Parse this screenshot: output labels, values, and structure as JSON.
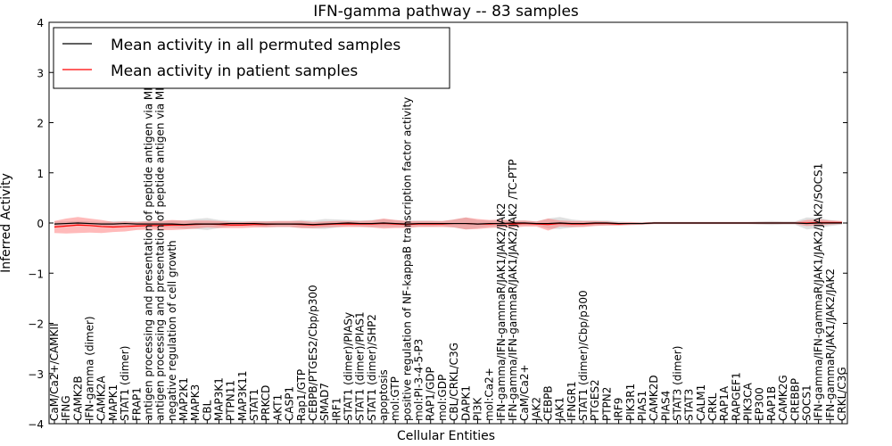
{
  "chart_data": {
    "type": "line",
    "title": "IFN-gamma pathway -- 83 samples",
    "xlabel": "Cellular Entities",
    "ylabel": "Inferred Activity",
    "ylim": [
      -4,
      4
    ],
    "yticks": [
      -4,
      -3,
      -2,
      -1,
      0,
      1,
      2,
      3,
      4
    ],
    "legend_position": "top-left",
    "categories": [
      "CaM/Ca2+/CAMKII",
      "IFNG",
      "CAMK2B",
      "IFN-gamma (dimer)",
      "CAMK2A",
      "MAPK1",
      "STAT1 (dimer)",
      "FRAP1",
      "antigen processing and presentation of peptide antigen via MHC class I",
      "antigen processing and presentation of peptide antigen via MHC class II",
      "negative regulation of cell growth",
      "MAP2K1",
      "MAPK3",
      "CBL",
      "MAP3K1",
      "PTPN11",
      "MAP3K11",
      "STAT1",
      "PRKCD",
      "AKT1",
      "CASP1",
      "Rap1/GTP",
      "CEBPB/PTGES2/Cbp/p300",
      "SMAD7",
      "IRF1",
      "STAT1 (dimer)/PIASy",
      "STAT1 (dimer)/PIAS1",
      "STAT1 (dimer)/SHP2",
      "apoptosis",
      "mol:GTP",
      "positive regulation of NF-kappaB transcription factor activity",
      "mol:PI-3-4-5-P3",
      "RAP1/GDP",
      "mol:GDP",
      "CBL/CRKL/C3G",
      "DAPK1",
      "PI3K",
      "mol:Ca2+",
      "IFN-gamma/IFN-gammaR/JAK1/JAK2/JAK2",
      "IFN-gamma/IFN-gammaR/JAK1/JAK2/JAK2  /TC-PTP",
      "CaM/Ca2+",
      "JAK2",
      "CEBPB",
      "JAK1",
      "IFNGR1",
      "STAT1 (dimer)/Cbp/p300",
      "PTGES2",
      "PTPN2",
      "IRF9",
      "PIK3R1",
      "PIAS1",
      "CAMK2D",
      "PIAS4",
      "STAT3 (dimer)",
      "STAT3",
      "CALM1",
      "CRKL",
      "RAP1A",
      "RAPGEF1",
      "PIK3CA",
      "EP300",
      "RAP1B",
      "CAMK2G",
      "CREBBP",
      "SOCS1",
      "IFN-gamma/IFN-gammaR/JAK1/JAK2/JAK2/SOCS1",
      "IFN-gammaR/JAK1/JAK2/JAK2",
      "CRKL/C3G"
    ],
    "series": [
      {
        "name": "Mean activity in all permuted samples",
        "color": "#000000",
        "values": [
          -0.02,
          -0.01,
          0.0,
          -0.01,
          -0.02,
          -0.02,
          -0.01,
          -0.02,
          -0.02,
          -0.02,
          -0.02,
          -0.03,
          -0.02,
          -0.02,
          -0.02,
          -0.01,
          -0.01,
          -0.01,
          -0.02,
          -0.02,
          -0.02,
          -0.02,
          -0.03,
          -0.02,
          -0.01,
          0.0,
          -0.01,
          -0.01,
          0.0,
          -0.01,
          -0.02,
          -0.01,
          -0.01,
          -0.01,
          -0.01,
          -0.01,
          -0.02,
          -0.01,
          -0.01,
          0.0,
          0.0,
          -0.01,
          -0.01,
          0.0,
          -0.01,
          -0.01,
          0.0,
          0.0,
          -0.01,
          -0.01,
          -0.01,
          0.0,
          0.0,
          0.0,
          0.0,
          0.0,
          0.0,
          0.0,
          0.0,
          0.0,
          0.0,
          0.0,
          0.0,
          0.0,
          -0.01,
          0.0,
          0.0,
          0.0
        ],
        "band": [
          0.05,
          0.04,
          0.04,
          0.04,
          0.04,
          0.06,
          0.05,
          0.05,
          0.06,
          0.06,
          0.07,
          0.08,
          0.1,
          0.12,
          0.08,
          0.06,
          0.05,
          0.05,
          0.06,
          0.06,
          0.06,
          0.08,
          0.08,
          0.1,
          0.08,
          0.06,
          0.06,
          0.07,
          0.08,
          0.07,
          0.06,
          0.06,
          0.06,
          0.05,
          0.08,
          0.12,
          0.08,
          0.06,
          0.06,
          0.05,
          0.05,
          0.04,
          0.1,
          0.12,
          0.08,
          0.06,
          0.05,
          0.05,
          0.04,
          0.03,
          0.03,
          0.02,
          0.02,
          0.02,
          0.02,
          0.02,
          0.02,
          0.02,
          0.02,
          0.02,
          0.03,
          0.04,
          0.03,
          0.03,
          0.12,
          0.1,
          0.06,
          0.03
        ]
      },
      {
        "name": "Mean activity in patient samples",
        "color": "#ff0000",
        "values": [
          -0.08,
          -0.06,
          -0.04,
          -0.05,
          -0.07,
          -0.08,
          -0.07,
          -0.06,
          -0.05,
          -0.05,
          -0.04,
          -0.04,
          -0.03,
          -0.02,
          -0.03,
          -0.04,
          -0.04,
          -0.03,
          -0.03,
          -0.02,
          -0.02,
          -0.03,
          -0.04,
          -0.03,
          -0.02,
          -0.02,
          -0.02,
          -0.02,
          -0.01,
          -0.02,
          -0.03,
          -0.02,
          -0.02,
          -0.02,
          -0.01,
          -0.01,
          -0.02,
          -0.02,
          -0.01,
          -0.02,
          -0.01,
          -0.02,
          -0.03,
          -0.01,
          -0.02,
          -0.02,
          -0.01,
          -0.01,
          -0.02,
          -0.01,
          -0.01,
          0.0,
          0.0,
          0.0,
          0.0,
          0.0,
          0.0,
          0.0,
          0.0,
          0.0,
          0.0,
          0.0,
          0.0,
          0.0,
          0.0,
          0.01,
          0.01,
          0.01
        ],
        "band": [
          0.12,
          0.15,
          0.16,
          0.14,
          0.13,
          0.1,
          0.1,
          0.08,
          0.08,
          0.09,
          0.1,
          0.09,
          0.08,
          0.07,
          0.07,
          0.06,
          0.06,
          0.06,
          0.06,
          0.06,
          0.06,
          0.07,
          0.06,
          0.06,
          0.06,
          0.06,
          0.06,
          0.07,
          0.1,
          0.08,
          0.07,
          0.06,
          0.06,
          0.06,
          0.08,
          0.12,
          0.1,
          0.08,
          0.08,
          0.07,
          0.06,
          0.05,
          0.12,
          0.06,
          0.06,
          0.06,
          0.05,
          0.04,
          0.03,
          0.03,
          0.02,
          0.02,
          0.02,
          0.02,
          0.02,
          0.02,
          0.02,
          0.02,
          0.02,
          0.02,
          0.02,
          0.02,
          0.02,
          0.02,
          0.06,
          0.06,
          0.04,
          0.03
        ]
      }
    ]
  }
}
